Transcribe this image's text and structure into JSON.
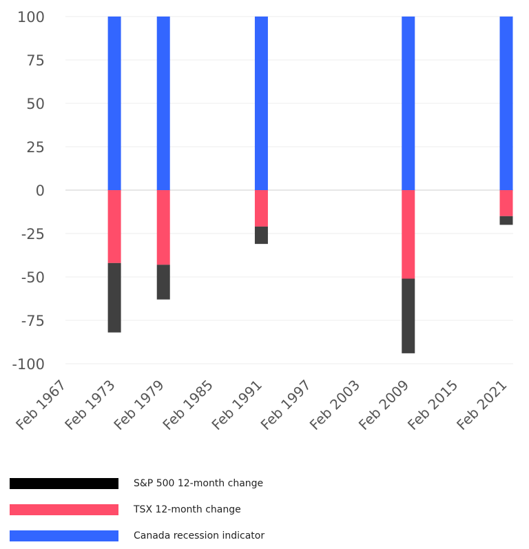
{
  "chart_data": {
    "type": "bar",
    "stacked": true,
    "title": "",
    "xlabel": "",
    "ylabel": "",
    "ylim": [
      -100,
      100
    ],
    "y_ticks": [
      100,
      75,
      50,
      25,
      0,
      -25,
      -50,
      -75,
      -100
    ],
    "x_tick_labels": [
      "Feb 1967",
      "Feb 1973",
      "Feb 1979",
      "Feb 1985",
      "Feb 1991",
      "Feb 1997",
      "Feb 2003",
      "Feb 2009",
      "Feb 2015",
      "Feb 2021"
    ],
    "categories": [
      "Feb 1967",
      "Feb 1973",
      "Feb 1979",
      "Feb 1985",
      "Feb 1991",
      "Feb 1997",
      "Feb 2003",
      "Feb 2009",
      "Feb 2015",
      "Feb 2021"
    ],
    "series": [
      {
        "name": "Canada recession indicator",
        "color": "#3366ff",
        "values": [
          0,
          100,
          100,
          0,
          100,
          0,
          0,
          100,
          0,
          100
        ]
      },
      {
        "name": "TSX 12-month change",
        "color": "#ff4d6a",
        "values": [
          0,
          -42,
          -43,
          0,
          -21,
          0,
          0,
          -51,
          0,
          -15
        ]
      },
      {
        "name": "S&P 500 12-month change",
        "color": "#404040",
        "values": [
          0,
          -40,
          -20,
          0,
          -10,
          0,
          0,
          -43,
          0,
          -5
        ]
      }
    ],
    "legend": [
      {
        "label": "S&P 500 12-month change",
        "color": "#000000"
      },
      {
        "label": "TSX 12-month change",
        "color": "#ff4d6a"
      },
      {
        "label": "Canada recession indicator",
        "color": "#3366ff"
      }
    ],
    "grid": true,
    "legend_position": "bottom-left"
  }
}
